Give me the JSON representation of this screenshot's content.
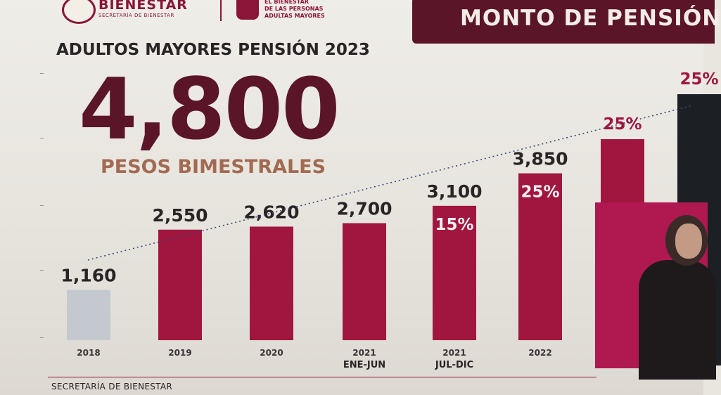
{
  "header": {
    "logo_text": "BIENESTAR",
    "logo_subtext": "SECRETARÍA DE BIENESTAR",
    "program_lines": [
      "EL BIENESTAR",
      "DE LAS PERSONAS",
      "ADULTAS MAYORES"
    ],
    "banner_title": "MONTO DE PENSIÓN"
  },
  "headline": {
    "subtitle": "ADULTOS MAYORES PENSIÓN 2023",
    "amount": "4,800",
    "amount_unit": "PESOS BIMESTRALES"
  },
  "footer": {
    "text": "SECRETARÍA DE BIENESTAR"
  },
  "colors": {
    "bar_main": "#a0163f",
    "bar_2018": "#c4c9cf",
    "bar_2023": "#1c2024",
    "trend_line": "#3a4a7a",
    "brand_dark": "#5b1528"
  },
  "chart_data": {
    "type": "bar",
    "categories": [
      "2018",
      "2019",
      "2020",
      "2021",
      "2021",
      "2022",
      "",
      ""
    ],
    "category_sublabels": [
      "",
      "",
      "",
      "ENE-JUN",
      "JUL-DIC",
      "",
      "",
      ""
    ],
    "values": [
      1160,
      2550,
      2620,
      2700,
      3100,
      3850,
      null,
      null
    ],
    "value_labels": [
      "1,160",
      "2,550",
      "2,620",
      "2,700",
      "3,100",
      "3,850",
      "",
      ""
    ],
    "increase_labels": [
      "",
      "",
      "",
      "",
      "15%",
      "25%",
      "25%",
      "25%"
    ],
    "ylim": [
      0,
      6000
    ],
    "trend_line": true,
    "grid": false
  }
}
